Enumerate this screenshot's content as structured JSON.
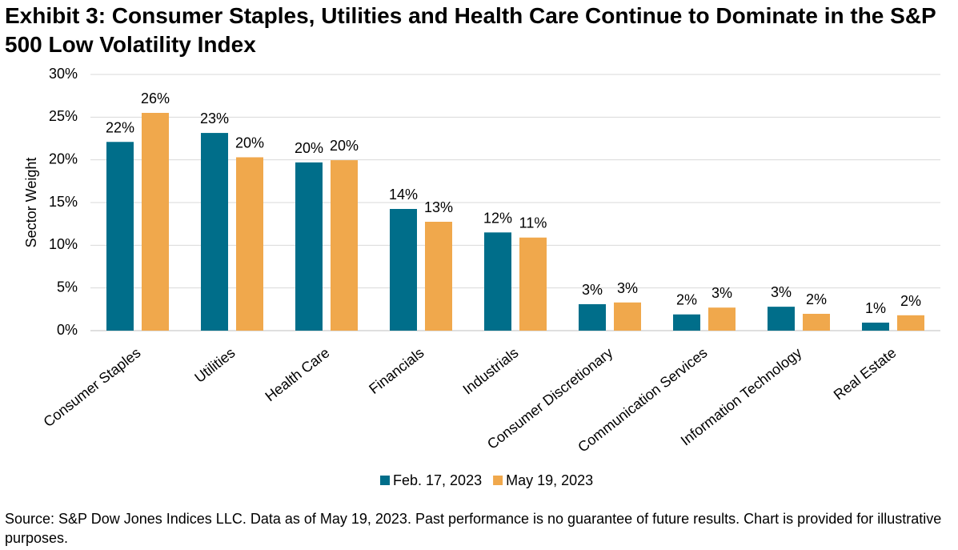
{
  "chart_data": {
    "type": "bar",
    "title": "Exhibit 3: Consumer Staples, Utilities and Health Care Continue to Dominate in the S&P 500 Low Volatility Index",
    "y_label": "Sector Weight",
    "source": "Source: S&P Dow Jones Indices LLC. Data as of May 19, 2023. Past performance is no guarantee of future results. Chart is provided for illustrative purposes.",
    "categories": [
      "Consumer Staples",
      "Utilities",
      "Health Care",
      "Financials",
      "Industrials",
      "Consumer Discretionary",
      "Communication Services",
      "Information Technology",
      "Real Estate"
    ],
    "series": [
      {
        "name": "Feb. 17, 2023",
        "color": "#006e8a",
        "values": [
          22.1,
          23.15,
          19.7,
          14.25,
          11.5,
          3.1,
          1.9,
          2.8,
          0.94
        ],
        "value_labels": [
          "22%",
          "23%",
          "20%",
          "14%",
          "12%",
          "3%",
          "2%",
          "3%",
          "1%"
        ]
      },
      {
        "name": "May 19, 2023",
        "color": "#f0a84c",
        "values": [
          25.5,
          20.3,
          19.96,
          12.75,
          10.9,
          3.3,
          2.7,
          1.97,
          1.8
        ],
        "value_labels": [
          "26%",
          "20%",
          "20%",
          "13%",
          "11%",
          "3%",
          "3%",
          "2%",
          "2%"
        ]
      }
    ],
    "ylim": [
      0,
      30
    ],
    "yticks": [
      {
        "value": 0,
        "label": "0%"
      },
      {
        "value": 5,
        "label": "5%"
      },
      {
        "value": 10,
        "label": "10%"
      },
      {
        "value": 15,
        "label": "15%"
      },
      {
        "value": 20,
        "label": "20%"
      },
      {
        "value": 25,
        "label": "25%"
      },
      {
        "value": 30,
        "label": "30%"
      }
    ],
    "grid": true,
    "legend": "bottom"
  }
}
